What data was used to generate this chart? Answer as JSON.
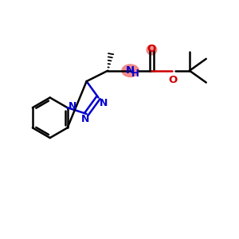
{
  "bg_color": "#ffffff",
  "bond_color": "#000000",
  "n_color": "#0000cc",
  "o_color": "#cc0000",
  "nh_highlight_color": "#f08080",
  "o_highlight_color": "#f08080",
  "figsize": [
    3.0,
    3.0
  ],
  "dpi": 100,
  "xlim": [
    0,
    10
  ],
  "ylim": [
    1,
    9
  ]
}
